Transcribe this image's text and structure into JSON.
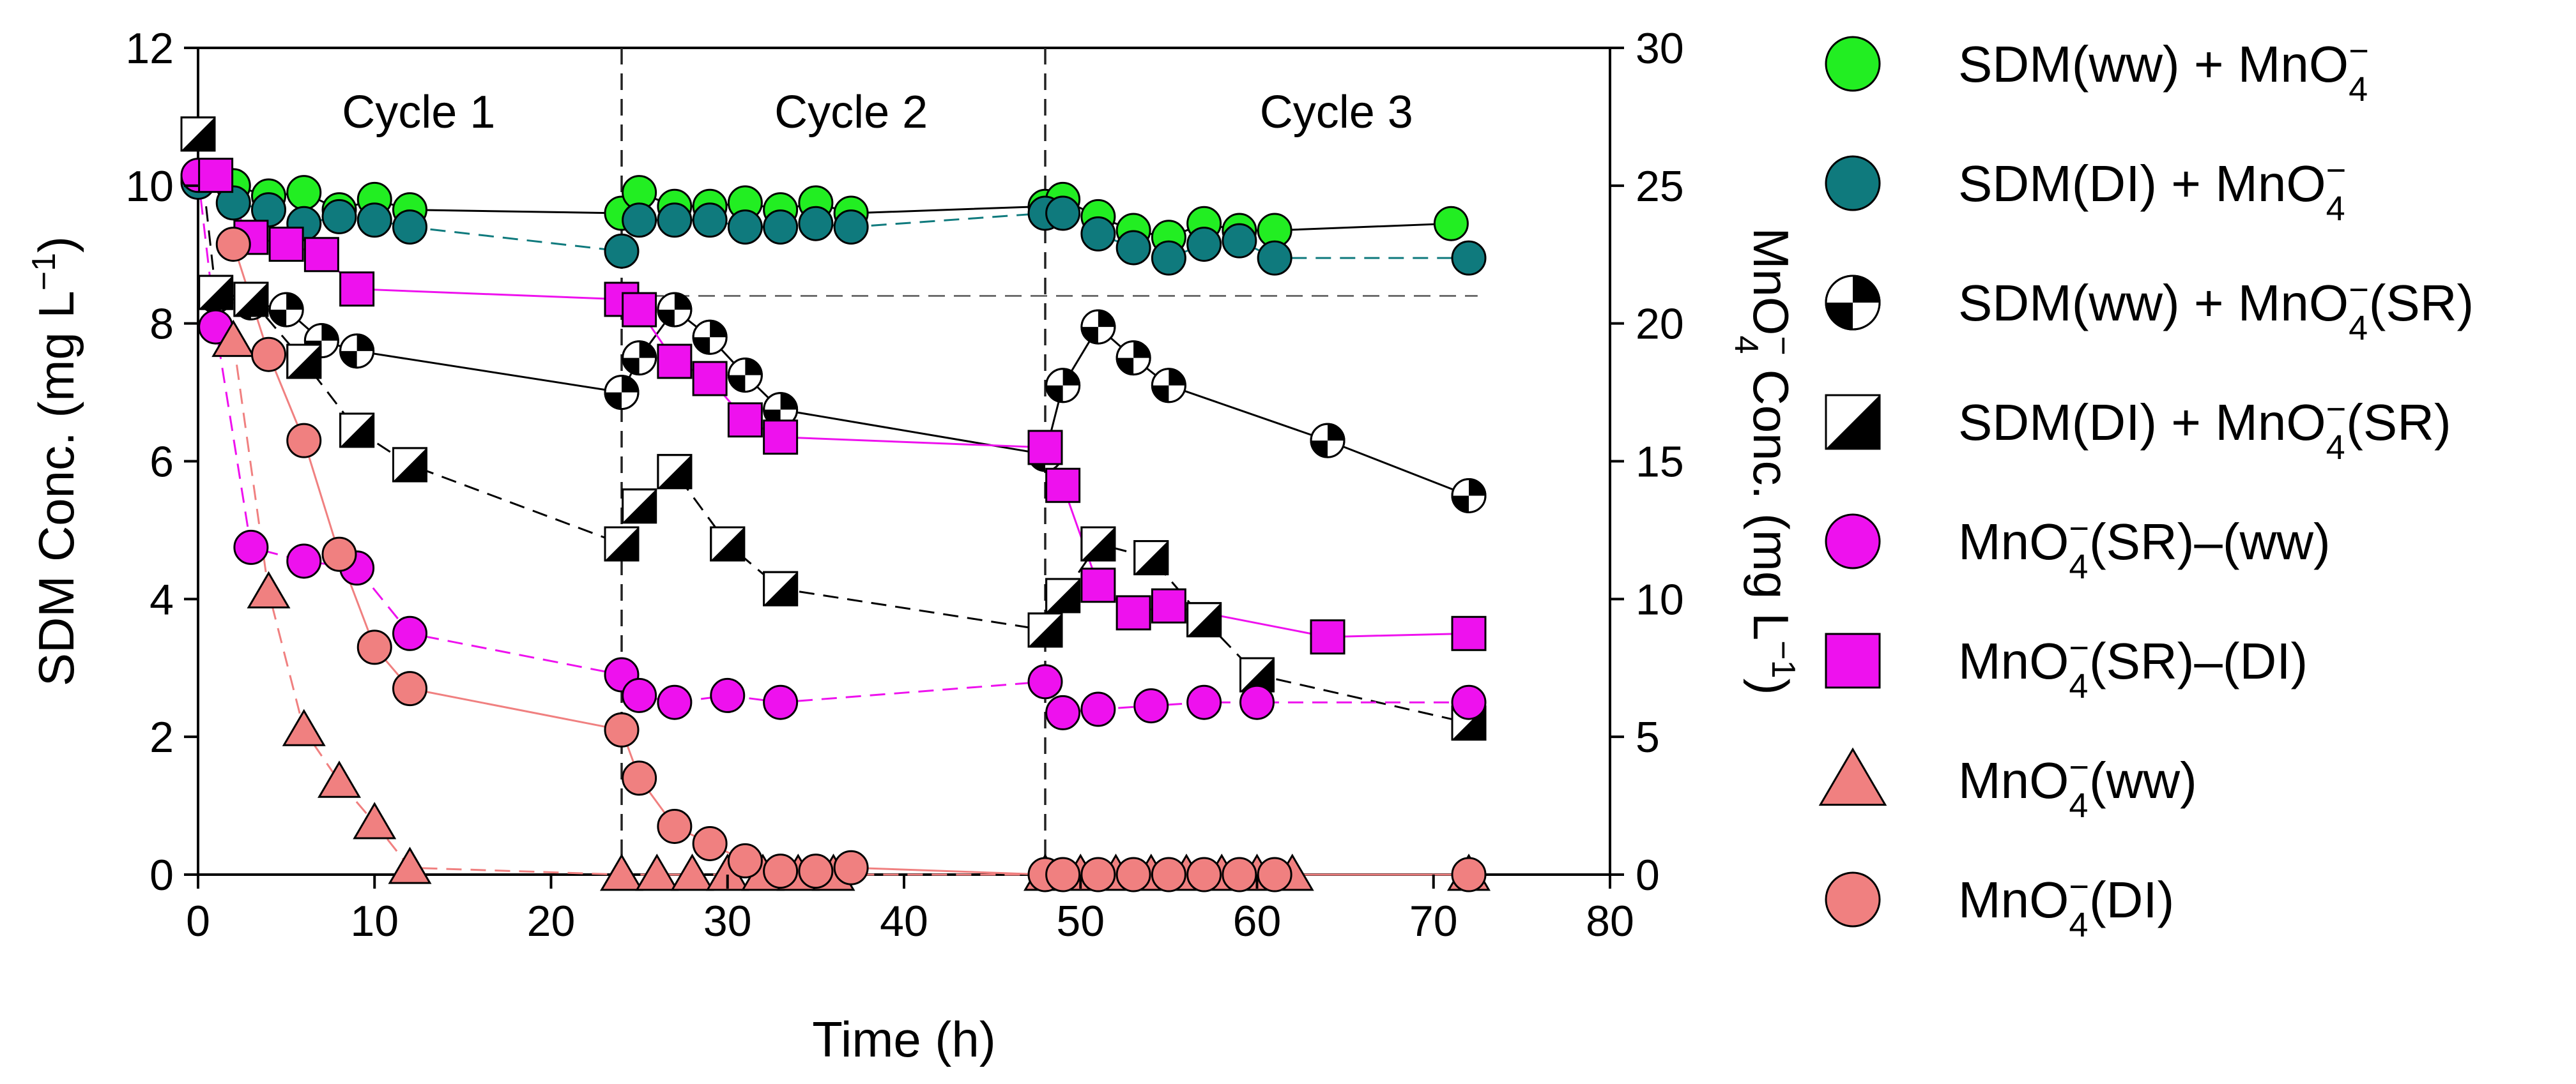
{
  "chart_data": {
    "type": "scatter",
    "xlabel": "Time (h)",
    "ylabel": "SDM Conc. (mg L",
    "ylabel_sup": "−1",
    "ylabel_close": ")",
    "y2label": "MnO",
    "y2label_sub": "4",
    "y2label_sup": "−",
    "y2label_rest": " Conc. (mg L",
    "y2label_sup2": "−1",
    "y2label_close": ")",
    "xlim": [
      0,
      80
    ],
    "ylim": [
      0,
      12
    ],
    "y2lim": [
      0,
      30
    ],
    "xticks": [
      "0",
      "10",
      "20",
      "30",
      "40",
      "50",
      "60",
      "70",
      "80"
    ],
    "yticks": [
      "0",
      "2",
      "4",
      "6",
      "8",
      "10",
      "12"
    ],
    "y2ticks": [
      "0",
      "5",
      "10",
      "15",
      "20",
      "25",
      "30"
    ],
    "cycles": [
      {
        "label": "Cycle 1",
        "x": 12.5
      },
      {
        "label": "Cycle 2",
        "x": 37
      },
      {
        "label": "Cycle 3",
        "x": 64.5
      }
    ],
    "cycle_boundaries": [
      24,
      48
    ],
    "reference_line_y": 8.4,
    "series": [
      {
        "name": "SDM(ww) + MnO4−",
        "legend": {
          "base": "SDM(ww) + MnO",
          "sub": "4",
          "sup": "−",
          "tail": ""
        },
        "marker": "circle",
        "fill": "#22ee22",
        "line_color": "#000000",
        "dash": "none",
        "points": [
          [
            0,
            10.1
          ],
          [
            2,
            10.0
          ],
          [
            4,
            9.85
          ],
          [
            6,
            9.9
          ],
          [
            8,
            9.65
          ],
          [
            10,
            9.8
          ],
          [
            12,
            9.65
          ],
          [
            24,
            9.6
          ],
          [
            25,
            9.9
          ],
          [
            27,
            9.7
          ],
          [
            29,
            9.7
          ],
          [
            31,
            9.75
          ],
          [
            33,
            9.65
          ],
          [
            35,
            9.75
          ],
          [
            37,
            9.6
          ],
          [
            48,
            9.7
          ],
          [
            49,
            9.8
          ],
          [
            51,
            9.55
          ],
          [
            53,
            9.35
          ],
          [
            55,
            9.25
          ],
          [
            57,
            9.45
          ],
          [
            59,
            9.35
          ],
          [
            61,
            9.35
          ],
          [
            71,
            9.45
          ]
        ]
      },
      {
        "name": "SDM(DI) + MnO4−",
        "legend": {
          "base": "SDM(DI) + MnO",
          "sub": "4",
          "sup": "−",
          "tail": ""
        },
        "marker": "circle",
        "fill": "#0f7a7d",
        "line_color": "#0f7a7d",
        "dash": "dash",
        "points": [
          [
            0,
            10.05
          ],
          [
            2,
            9.75
          ],
          [
            4,
            9.65
          ],
          [
            6,
            9.45
          ],
          [
            8,
            9.55
          ],
          [
            10,
            9.5
          ],
          [
            12,
            9.4
          ],
          [
            24,
            9.05
          ],
          [
            25,
            9.5
          ],
          [
            27,
            9.5
          ],
          [
            29,
            9.5
          ],
          [
            31,
            9.4
          ],
          [
            33,
            9.4
          ],
          [
            35,
            9.45
          ],
          [
            37,
            9.4
          ],
          [
            48,
            9.6
          ],
          [
            49,
            9.6
          ],
          [
            51,
            9.3
          ],
          [
            53,
            9.1
          ],
          [
            55,
            8.95
          ],
          [
            57,
            9.15
          ],
          [
            59,
            9.2
          ],
          [
            61,
            8.95
          ],
          [
            72,
            8.95
          ]
        ]
      },
      {
        "name": "SDM(ww) + MnO4−(SR)",
        "legend": {
          "base": "SDM(ww) + MnO",
          "sub": "4",
          "sup": "−",
          "tail": "(SR)"
        },
        "marker": "quartered",
        "fill": "#ffffff",
        "line_color": "#000000",
        "dash": "none",
        "points": [
          [
            1,
            8.4
          ],
          [
            3,
            8.3
          ],
          [
            5,
            8.2
          ],
          [
            7,
            7.75
          ],
          [
            9,
            7.6
          ],
          [
            24,
            7.0
          ],
          [
            25,
            7.5
          ],
          [
            27,
            8.2
          ],
          [
            29,
            7.8
          ],
          [
            31,
            7.25
          ],
          [
            33,
            6.75
          ],
          [
            48,
            6.1
          ],
          [
            49,
            7.1
          ],
          [
            51,
            7.95
          ],
          [
            53,
            7.5
          ],
          [
            55,
            7.1
          ],
          [
            64,
            6.3
          ],
          [
            72,
            5.5
          ]
        ]
      },
      {
        "name": "SDM(DI) + MnO4−(SR)",
        "legend": {
          "base": "SDM(DI) + MnO",
          "sub": "4",
          "sup": "−",
          "tail": "(SR)"
        },
        "marker": "halfsquare",
        "fill": "#ffffff",
        "line_color": "#000000",
        "dash": "dash",
        "points": [
          [
            0,
            10.75
          ],
          [
            1,
            8.45
          ],
          [
            3,
            8.35
          ],
          [
            6,
            7.45
          ],
          [
            9,
            6.45
          ],
          [
            12,
            5.95
          ],
          [
            24,
            4.8
          ],
          [
            25,
            5.35
          ],
          [
            27,
            5.85
          ],
          [
            30,
            4.8
          ],
          [
            33,
            4.15
          ],
          [
            48,
            3.55
          ],
          [
            49,
            4.05
          ],
          [
            51,
            4.8
          ],
          [
            54,
            4.6
          ],
          [
            57,
            3.7
          ],
          [
            60,
            2.9
          ],
          [
            72,
            2.2
          ]
        ]
      },
      {
        "name": "MnO4−(SR)–(ww)",
        "legend": {
          "base": "MnO",
          "sub": "4",
          "sup": "−",
          "tail": "(SR)–(ww)"
        },
        "marker": "circle",
        "fill": "#ee11ee",
        "line_color": "#ee11ee",
        "dash": "dash",
        "points": [
          [
            0,
            10.15
          ],
          [
            1,
            7.95
          ],
          [
            3,
            4.75
          ],
          [
            6,
            4.55
          ],
          [
            9,
            4.45
          ],
          [
            12,
            3.5
          ],
          [
            24,
            2.9
          ],
          [
            25,
            2.6
          ],
          [
            27,
            2.5
          ],
          [
            30,
            2.6
          ],
          [
            33,
            2.5
          ],
          [
            48,
            2.8
          ],
          [
            49,
            2.35
          ],
          [
            51,
            2.4
          ],
          [
            54,
            2.45
          ],
          [
            57,
            2.5
          ],
          [
            60,
            2.5
          ],
          [
            72,
            2.5
          ]
        ]
      },
      {
        "name": "MnO4−(SR)–(DI)",
        "legend": {
          "base": "MnO",
          "sub": "4",
          "sup": "−",
          "tail": "(SR)–(DI)"
        },
        "marker": "square",
        "fill": "#ee11ee",
        "line_color": "#ee11ee",
        "dash": "none",
        "points": [
          [
            1,
            10.15
          ],
          [
            3,
            9.25
          ],
          [
            5,
            9.15
          ],
          [
            7,
            9.0
          ],
          [
            9,
            8.5
          ],
          [
            24,
            8.35
          ],
          [
            25,
            8.2
          ],
          [
            27,
            7.45
          ],
          [
            29,
            7.2
          ],
          [
            31,
            6.6
          ],
          [
            33,
            6.35
          ],
          [
            48,
            6.2
          ],
          [
            49,
            5.65
          ],
          [
            51,
            4.2
          ],
          [
            53,
            3.8
          ],
          [
            55,
            3.9
          ],
          [
            64,
            3.45
          ],
          [
            72,
            3.5
          ]
        ]
      },
      {
        "name": "MnO4−(ww)",
        "legend": {
          "base": "MnO",
          "sub": "4",
          "sup": "−",
          "tail": "(ww)"
        },
        "marker": "triangle",
        "fill": "#f08080",
        "line_color": "#f08080",
        "dash": "dash",
        "points": [
          [
            2,
            7.75
          ],
          [
            4,
            4.1
          ],
          [
            6,
            2.1
          ],
          [
            8,
            1.35
          ],
          [
            10,
            0.75
          ],
          [
            12,
            0.1
          ],
          [
            24,
            0
          ],
          [
            26,
            0
          ],
          [
            28,
            0
          ],
          [
            30,
            0
          ],
          [
            32,
            0
          ],
          [
            34,
            0
          ],
          [
            36,
            0
          ],
          [
            48,
            0
          ],
          [
            50,
            0
          ],
          [
            52,
            0
          ],
          [
            54,
            0
          ],
          [
            56,
            0
          ],
          [
            58,
            0
          ],
          [
            60,
            0
          ],
          [
            62,
            0
          ],
          [
            72,
            0
          ]
        ]
      },
      {
        "name": "MnO4−(DI)",
        "legend": {
          "base": "MnO",
          "sub": "4",
          "sup": "−",
          "tail": "(DI)"
        },
        "marker": "circle",
        "fill": "#f08080",
        "line_color": "#f08080",
        "dash": "none",
        "points": [
          [
            2,
            9.15
          ],
          [
            4,
            7.55
          ],
          [
            6,
            6.3
          ],
          [
            8,
            4.65
          ],
          [
            10,
            3.3
          ],
          [
            12,
            2.7
          ],
          [
            24,
            2.1
          ],
          [
            25,
            1.4
          ],
          [
            27,
            0.7
          ],
          [
            29,
            0.45
          ],
          [
            31,
            0.2
          ],
          [
            33,
            0.05
          ],
          [
            35,
            0.05
          ],
          [
            37,
            0.1
          ],
          [
            48,
            0
          ],
          [
            49,
            0
          ],
          [
            51,
            0
          ],
          [
            53,
            0
          ],
          [
            55,
            0
          ],
          [
            57,
            0
          ],
          [
            59,
            0
          ],
          [
            61,
            0
          ],
          [
            72,
            0
          ]
        ]
      }
    ]
  }
}
